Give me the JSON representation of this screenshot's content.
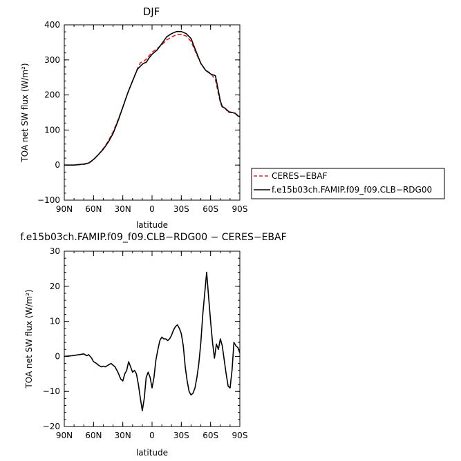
{
  "chart_data": [
    {
      "type": "line",
      "title": "DJF",
      "xlabel": "latitude",
      "ylabel": "TOA net SW flux (W/m²)",
      "xlim": [
        -90,
        90
      ],
      "ylim": [
        -100,
        400
      ],
      "x_ticks": [
        -90,
        -60,
        -30,
        0,
        30,
        60,
        90
      ],
      "x_tick_labels": [
        "90N",
        "60N",
        "30N",
        "0",
        "30S",
        "60S",
        "90S"
      ],
      "y_ticks": [
        -100,
        0,
        100,
        200,
        300,
        400
      ],
      "y_tick_labels": [
        "−100",
        "0",
        "100",
        "200",
        "300",
        "400"
      ],
      "grid": false,
      "legend": "right",
      "series": [
        {
          "name": "CERES−EBAF",
          "color": "#e0201b",
          "dash": "dashed",
          "x": [
            -90,
            -80,
            -70,
            -65,
            -60,
            -55,
            -50,
            -45,
            -40,
            -35,
            -30,
            -25,
            -20,
            -15,
            -12,
            -9,
            -6,
            -3,
            0,
            5,
            10,
            15,
            20,
            25,
            30,
            35,
            40,
            45,
            50,
            55,
            60,
            65,
            70,
            72,
            75,
            78,
            80,
            82,
            85,
            88,
            90
          ],
          "y": [
            0,
            0,
            2,
            5,
            15,
            30,
            47,
            68,
            95,
            128,
            165,
            205,
            240,
            275,
            292,
            295,
            302,
            312,
            322,
            332,
            343,
            357,
            365,
            372,
            373,
            368,
            353,
            320,
            290,
            270,
            262,
            243,
            178,
            165,
            162,
            150,
            152,
            150,
            148,
            142,
            138
          ]
        },
        {
          "name": "f.e15b03ch.FAMIP.f09_f09.CLB−RDG00",
          "color": "#000000",
          "dash": "solid",
          "x": [
            -90,
            -80,
            -70,
            -65,
            -60,
            -55,
            -50,
            -45,
            -40,
            -35,
            -30,
            -25,
            -20,
            -15,
            -12,
            -9,
            -6,
            -3,
            0,
            5,
            10,
            15,
            20,
            25,
            30,
            35,
            40,
            45,
            50,
            55,
            60,
            65,
            70,
            72,
            75,
            78,
            80,
            82,
            85,
            88,
            90
          ],
          "y": [
            0,
            0,
            3,
            6,
            16,
            30,
            45,
            65,
            90,
            125,
            165,
            205,
            240,
            273,
            282,
            290,
            293,
            306,
            316,
            328,
            346,
            366,
            375,
            381,
            381,
            375,
            361,
            325,
            290,
            270,
            260,
            255,
            183,
            167,
            162,
            154,
            150,
            150,
            148,
            140,
            138
          ]
        }
      ]
    },
    {
      "type": "line",
      "title": "f.e15b03ch.FAMIP.f09_f09.CLB−RDG00 − CERES−EBAF",
      "xlabel": "latitude",
      "ylabel": "TOA net SW flux (W/m²)",
      "xlim": [
        -90,
        90
      ],
      "ylim": [
        -20,
        30
      ],
      "x_ticks": [
        -90,
        -60,
        -30,
        0,
        30,
        60,
        90
      ],
      "x_tick_labels": [
        "90N",
        "60N",
        "30N",
        "0",
        "30S",
        "60S",
        "90S"
      ],
      "y_ticks": [
        -20,
        -10,
        0,
        10,
        20,
        30
      ],
      "y_tick_labels": [
        "−20",
        "−10",
        "0",
        "10",
        "20",
        "30"
      ],
      "grid": false,
      "legend": "none",
      "series": [
        {
          "name": "",
          "color": "#000000",
          "dash": "solid",
          "x": [
            -90,
            -82,
            -75,
            -70,
            -67,
            -65,
            -62,
            -60,
            -57,
            -55,
            -52,
            -50,
            -48,
            -45,
            -42,
            -40,
            -38,
            -35,
            -32,
            -30,
            -28,
            -26,
            -24,
            -22,
            -20,
            -18,
            -16,
            -14,
            -12,
            -10,
            -8,
            -6,
            -4,
            -2,
            0,
            2,
            4,
            6,
            8,
            10,
            12,
            14,
            16,
            18,
            20,
            22,
            24,
            26,
            28,
            30,
            32,
            34,
            36,
            38,
            40,
            42,
            44,
            46,
            48,
            50,
            52,
            54,
            56,
            58,
            60,
            62,
            64,
            66,
            68,
            70,
            72,
            74,
            76,
            78,
            80,
            82,
            84,
            86,
            88,
            90
          ],
          "y": [
            0,
            0.2,
            0.5,
            0.7,
            0.2,
            0.5,
            -0.5,
            -1.5,
            -2,
            -2.5,
            -3,
            -2.8,
            -3,
            -2.5,
            -2,
            -2.5,
            -3,
            -4.5,
            -6.5,
            -7,
            -5,
            -4,
            -1.5,
            -3,
            -4.5,
            -4,
            -5,
            -8,
            -12,
            -15.5,
            -12,
            -6,
            -4.5,
            -6,
            -9,
            -6,
            -1,
            2,
            4.5,
            5.5,
            5,
            5,
            4.5,
            5,
            6,
            7.5,
            8.5,
            9,
            8,
            6.5,
            3,
            -3,
            -7,
            -10,
            -11,
            -10.5,
            -9,
            -6,
            -2,
            4,
            12,
            18,
            24,
            17,
            10,
            4,
            -0.5,
            3.5,
            2,
            5,
            3,
            -1,
            -5,
            -8.5,
            -9,
            -4,
            4,
            3,
            2.5,
            1
          ]
        }
      ]
    }
  ]
}
